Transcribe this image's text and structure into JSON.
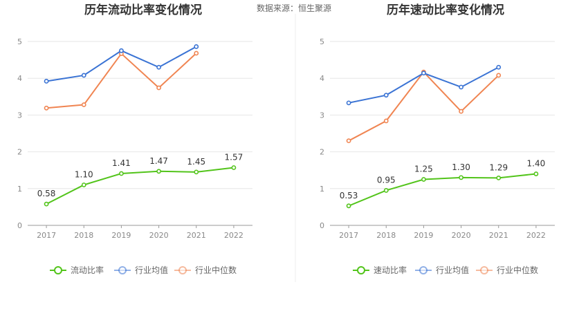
{
  "source_label": "数据来源：恒生聚源",
  "colors": {
    "series_main": "#52c41a",
    "series_avg": "#3a73d4",
    "series_median": "#f08552",
    "grid": "#e6e6e6",
    "axis": "#999999",
    "divider": "#eeeeee"
  },
  "chart_data": [
    {
      "type": "line",
      "title": "历年流动比率变化情况",
      "categories": [
        "2017",
        "2018",
        "2019",
        "2020",
        "2021",
        "2022"
      ],
      "ylim": [
        0,
        5
      ],
      "yticks": [
        0,
        1,
        2,
        3,
        4,
        5
      ],
      "grid": true,
      "legend_position": "bottom",
      "series": [
        {
          "name": "流动比率",
          "values": [
            0.58,
            1.1,
            1.41,
            1.47,
            1.45,
            1.57
          ],
          "show_labels": true
        },
        {
          "name": "行业均值",
          "values": [
            3.92,
            4.08,
            4.75,
            4.3,
            4.86,
            null
          ],
          "show_labels": false
        },
        {
          "name": "行业中位数",
          "values": [
            3.19,
            3.28,
            4.67,
            3.74,
            4.68,
            null
          ],
          "show_labels": false
        }
      ]
    },
    {
      "type": "line",
      "title": "历年速动比率变化情况",
      "categories": [
        "2017",
        "2018",
        "2019",
        "2020",
        "2021",
        "2022"
      ],
      "ylim": [
        0,
        5
      ],
      "yticks": [
        0,
        1,
        2,
        3,
        4,
        5
      ],
      "grid": true,
      "legend_position": "bottom",
      "series": [
        {
          "name": "速动比率",
          "values": [
            0.53,
            0.95,
            1.25,
            1.3,
            1.29,
            1.4
          ],
          "show_labels": true
        },
        {
          "name": "行业均值",
          "values": [
            3.33,
            3.54,
            4.14,
            3.76,
            4.3,
            null
          ],
          "show_labels": false
        },
        {
          "name": "行业中位数",
          "values": [
            2.3,
            2.84,
            4.17,
            3.1,
            4.08,
            null
          ],
          "show_labels": false
        }
      ]
    }
  ]
}
